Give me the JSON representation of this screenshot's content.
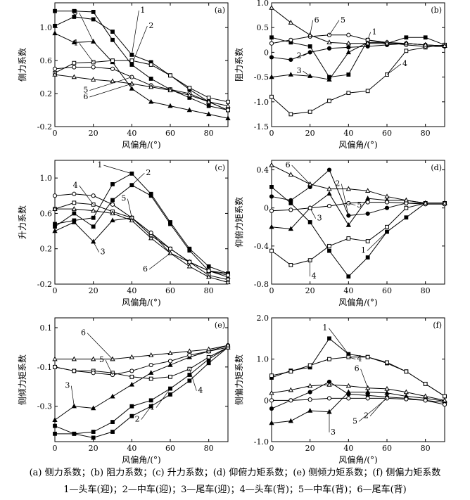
{
  "caption": {
    "line1": "(a) 侧力系数；(b) 阻力系数；(c) 升力系数；(d) 仰俯力矩系数；(e) 侧倾力矩系数；(f) 侧偏力矩系数",
    "line2": "1—头车(迎)；2—中车(迎)；3—尾车(迎)；4—头车(背)；5—中车(背)；6—尾车(背)"
  },
  "chart_data": [
    {
      "panel": "(a)",
      "type": "line",
      "xlabel": "风偏角/(°)",
      "ylabel": "侧力系数",
      "xlim": [
        0,
        90
      ],
      "ylim": [
        -0.2,
        1.3
      ],
      "xticks": [
        0,
        20,
        40,
        60,
        80
      ],
      "yticks": [
        -0.2,
        0.2,
        0.6,
        1.0
      ],
      "ytick_labels": [
        "-0.2",
        "0.2",
        "0.6",
        "1.0"
      ],
      "x": [
        0,
        10,
        20,
        30,
        40,
        50,
        60,
        70,
        80,
        90
      ],
      "series": [
        {
          "name": "1",
          "marker": "filled-square",
          "values": [
            1.02,
            1.13,
            1.1,
            0.95,
            0.67,
            0.58,
            0.42,
            0.25,
            0.1,
            0.0
          ]
        },
        {
          "name": "2",
          "marker": "filled-square",
          "values": [
            1.2,
            1.2,
            1.19,
            0.85,
            0.55,
            0.38,
            0.25,
            0.15,
            0.05,
            0.0
          ]
        },
        {
          "name": "3",
          "marker": "filled-triangle",
          "values": [
            0.93,
            0.82,
            0.83,
            0.58,
            0.26,
            0.1,
            0.05,
            0.0,
            -0.05,
            -0.1
          ]
        },
        {
          "name": "4",
          "marker": "open-square",
          "values": [
            0.45,
            0.57,
            0.58,
            0.6,
            0.6,
            0.55,
            0.42,
            0.27,
            0.15,
            0.1
          ]
        },
        {
          "name": "5",
          "marker": "open-circle",
          "values": [
            0.5,
            0.52,
            0.52,
            0.5,
            0.4,
            0.3,
            0.25,
            0.2,
            0.1,
            0.0
          ]
        },
        {
          "name": "6",
          "marker": "open-triangle",
          "values": [
            0.43,
            0.4,
            0.37,
            0.35,
            0.32,
            0.28,
            0.24,
            0.18,
            0.1,
            0.05
          ]
        }
      ],
      "series_labels": [
        "1",
        "2",
        "3",
        "4",
        "5",
        "6"
      ]
    },
    {
      "panel": "(b)",
      "type": "line",
      "xlabel": "风偏角/(°)",
      "ylabel": "阻力系数",
      "xlim": [
        0,
        90
      ],
      "ylim": [
        -1.5,
        1.0
      ],
      "xticks": [
        0,
        20,
        40,
        60,
        80
      ],
      "yticks": [
        -1.5,
        -1.0,
        -0.5,
        0,
        0.5,
        1.0
      ],
      "ytick_labels": [
        "-1.5",
        "-1.0",
        "-0.5",
        "0",
        "0.5",
        "1.0"
      ],
      "x": [
        0,
        10,
        20,
        30,
        40,
        50,
        60,
        70,
        80,
        90
      ],
      "series": [
        {
          "name": "1",
          "marker": "filled-square",
          "values": [
            0.3,
            0.2,
            0.12,
            -0.5,
            -0.45,
            0.25,
            0.18,
            0.3,
            0.3,
            0.15
          ]
        },
        {
          "name": "2",
          "marker": "filled-circle",
          "values": [
            -0.1,
            -0.15,
            0.0,
            0.08,
            0.1,
            0.12,
            0.15,
            0.18,
            0.15,
            0.13
          ]
        },
        {
          "name": "3",
          "marker": "filled-triangle",
          "values": [
            -0.5,
            -0.45,
            -0.48,
            -0.55,
            0.0,
            0.2,
            0.2,
            0.18,
            0.15,
            0.13
          ]
        },
        {
          "name": "4",
          "marker": "open-square",
          "values": [
            -0.9,
            -1.25,
            -1.2,
            -0.98,
            -0.82,
            -0.78,
            -0.45,
            0.03,
            0.1,
            0.15
          ]
        },
        {
          "name": "5",
          "marker": "open-circle",
          "values": [
            0.18,
            0.25,
            0.32,
            0.35,
            0.35,
            0.25,
            0.2,
            0.15,
            0.12,
            0.12
          ]
        },
        {
          "name": "6",
          "marker": "open-triangle",
          "values": [
            0.9,
            0.6,
            0.35,
            0.2,
            0.18,
            0.18,
            0.18,
            0.18,
            0.15,
            0.13
          ]
        }
      ],
      "series_labels": [
        "1",
        "2",
        "3",
        "4",
        "5",
        "6"
      ]
    },
    {
      "panel": "(c)",
      "type": "line",
      "xlabel": "风偏角/(°)",
      "ylabel": "升力系数",
      "xlim": [
        0,
        90
      ],
      "ylim": [
        -0.2,
        1.2
      ],
      "xticks": [
        0,
        20,
        40,
        60,
        80
      ],
      "yticks": [
        -0.2,
        0.2,
        0.6,
        1.0
      ],
      "ytick_labels": [
        "-0.2",
        "0.2",
        "0.6",
        "1.0"
      ],
      "x": [
        0,
        10,
        20,
        30,
        40,
        50,
        60,
        70,
        80,
        90
      ],
      "series": [
        {
          "name": "1",
          "marker": "filled-square",
          "values": [
            0.48,
            0.52,
            0.55,
            0.93,
            1.05,
            0.82,
            0.5,
            0.2,
            0.0,
            -0.08
          ]
        },
        {
          "name": "2",
          "marker": "filled-square",
          "values": [
            0.45,
            0.6,
            0.45,
            0.75,
            0.92,
            0.8,
            0.48,
            0.18,
            -0.05,
            -0.08
          ]
        },
        {
          "name": "3",
          "marker": "filled-triangle",
          "values": [
            0.4,
            0.5,
            0.28,
            0.52,
            0.55,
            0.38,
            0.15,
            0.05,
            -0.05,
            -0.12
          ]
        },
        {
          "name": "4",
          "marker": "open-square",
          "values": [
            0.65,
            0.72,
            0.7,
            0.62,
            0.55,
            0.35,
            0.2,
            0.05,
            -0.1,
            -0.15
          ]
        },
        {
          "name": "5",
          "marker": "open-circle",
          "values": [
            0.8,
            0.82,
            0.8,
            0.7,
            0.55,
            0.38,
            0.2,
            0.05,
            -0.05,
            -0.1
          ]
        },
        {
          "name": "6",
          "marker": "open-triangle",
          "values": [
            0.65,
            0.65,
            0.63,
            0.6,
            0.52,
            0.32,
            0.15,
            0.0,
            -0.12,
            -0.18
          ]
        }
      ],
      "series_labels": [
        "1",
        "2",
        "3",
        "4",
        "5",
        "6"
      ]
    },
    {
      "panel": "(d)",
      "type": "line",
      "xlabel": "风偏角/(°)",
      "ylabel": "仰俯力矩系数",
      "xlim": [
        0,
        90
      ],
      "ylim": [
        -0.8,
        0.5
      ],
      "xticks": [
        0,
        20,
        40,
        60,
        80
      ],
      "yticks": [
        -0.8,
        -0.4,
        0,
        0.4
      ],
      "ytick_labels": [
        "-0.8",
        "-0.4",
        "0",
        "0.4"
      ],
      "x": [
        0,
        10,
        20,
        30,
        40,
        50,
        60,
        70,
        80,
        90
      ],
      "series": [
        {
          "name": "1",
          "marker": "filled-square",
          "values": [
            0.22,
            0.05,
            -0.15,
            -0.45,
            -0.72,
            -0.52,
            -0.25,
            -0.1,
            0.05,
            0.05
          ]
        },
        {
          "name": "2",
          "marker": "filled-circle",
          "values": [
            0.12,
            0.08,
            0.22,
            0.4,
            -0.08,
            -0.06,
            0.0,
            0.05,
            0.05,
            0.05
          ]
        },
        {
          "name": "3",
          "marker": "filled-triangle",
          "values": [
            -0.2,
            -0.22,
            0.0,
            0.15,
            -0.18,
            0.1,
            0.08,
            0.08,
            0.05,
            0.05
          ]
        },
        {
          "name": "4",
          "marker": "open-square",
          "values": [
            -0.45,
            -0.6,
            -0.55,
            -0.4,
            -0.32,
            -0.35,
            -0.2,
            0.0,
            0.05,
            0.05
          ]
        },
        {
          "name": "5",
          "marker": "open-circle",
          "values": [
            -0.03,
            -0.02,
            0.0,
            0.02,
            0.05,
            0.06,
            0.06,
            0.05,
            0.04,
            0.04
          ]
        },
        {
          "name": "6",
          "marker": "open-triangle",
          "values": [
            0.45,
            0.35,
            0.25,
            0.2,
            0.2,
            0.18,
            0.12,
            0.08,
            0.05,
            0.05
          ]
        }
      ],
      "series_labels": [
        "1",
        "2",
        "3",
        "4",
        "5",
        "6"
      ]
    },
    {
      "panel": "(e)",
      "type": "line",
      "xlabel": "风偏角/(°)",
      "ylabel": "侧倾力矩系数",
      "xlim": [
        0,
        90
      ],
      "ylim": [
        -0.48,
        0.15
      ],
      "xticks": [
        0,
        20,
        40,
        60,
        80
      ],
      "yticks": [
        -0.3,
        -0.1,
        0.1
      ],
      "ytick_labels": [
        "-0.3",
        "-0.1",
        "0.1"
      ],
      "x": [
        0,
        10,
        20,
        30,
        40,
        50,
        60,
        70,
        80,
        90
      ],
      "series": [
        {
          "name": "1",
          "marker": "filled-square",
          "values": [
            -0.4,
            -0.44,
            -0.43,
            -0.38,
            -0.3,
            -0.27,
            -0.21,
            -0.14,
            -0.06,
            0.0
          ]
        },
        {
          "name": "2",
          "marker": "filled-square",
          "values": [
            -0.44,
            -0.44,
            -0.46,
            -0.43,
            -0.35,
            -0.3,
            -0.24,
            -0.17,
            -0.08,
            0.0
          ]
        },
        {
          "name": "3",
          "marker": "filled-triangle",
          "values": [
            -0.37,
            -0.3,
            -0.31,
            -0.25,
            -0.19,
            -0.13,
            -0.09,
            -0.05,
            -0.02,
            0.0
          ]
        },
        {
          "name": "4",
          "marker": "open-square",
          "values": [
            -0.1,
            -0.12,
            -0.12,
            -0.13,
            -0.15,
            -0.16,
            -0.15,
            -0.11,
            -0.05,
            0.0
          ]
        },
        {
          "name": "5",
          "marker": "open-circle",
          "values": [
            -0.1,
            -0.12,
            -0.13,
            -0.14,
            -0.12,
            -0.09,
            -0.07,
            -0.04,
            -0.02,
            0.01
          ]
        },
        {
          "name": "6",
          "marker": "open-triangle",
          "values": [
            -0.06,
            -0.06,
            -0.06,
            -0.06,
            -0.05,
            -0.04,
            -0.03,
            -0.02,
            -0.01,
            0.01
          ]
        }
      ],
      "series_labels": [
        "1",
        "2",
        "3",
        "4",
        "5",
        "6"
      ]
    },
    {
      "panel": "(f)",
      "type": "line",
      "xlabel": "风偏角/(°)",
      "ylabel": "侧偏力矩系数",
      "xlim": [
        0,
        90
      ],
      "ylim": [
        -1.0,
        2.0
      ],
      "xticks": [
        0,
        20,
        40,
        60,
        80
      ],
      "yticks": [
        -1.0,
        0,
        1.0,
        2.0
      ],
      "ytick_labels": [
        "-1.0",
        "0",
        "1.0",
        "2.0"
      ],
      "x": [
        0,
        10,
        20,
        30,
        40,
        50,
        60,
        70,
        80,
        90
      ],
      "series": [
        {
          "name": "1",
          "marker": "filled-square",
          "values": [
            0.55,
            0.72,
            0.8,
            1.5,
            1.12,
            1.05,
            0.9,
            0.7,
            0.4,
            0.1
          ]
        },
        {
          "name": "2",
          "marker": "filled-circle",
          "values": [
            -0.2,
            0.0,
            0.2,
            0.45,
            0.15,
            0.12,
            0.08,
            0.05,
            0.0,
            -0.05
          ]
        },
        {
          "name": "3",
          "marker": "filled-triangle",
          "values": [
            -0.55,
            -0.5,
            -0.25,
            -0.28,
            0.2,
            0.2,
            0.18,
            0.1,
            0.05,
            -0.02
          ]
        },
        {
          "name": "4",
          "marker": "open-square",
          "values": [
            0.6,
            0.7,
            0.85,
            1.0,
            1.05,
            1.05,
            0.92,
            0.7,
            0.4,
            0.1
          ]
        },
        {
          "name": "5",
          "marker": "open-circle",
          "values": [
            0.0,
            0.0,
            0.02,
            0.05,
            0.05,
            0.05,
            0.05,
            0.03,
            0.0,
            -0.1
          ]
        },
        {
          "name": "6",
          "marker": "open-triangle",
          "values": [
            0.18,
            0.25,
            0.35,
            0.38,
            0.35,
            0.3,
            0.28,
            0.2,
            0.1,
            0.0
          ]
        }
      ],
      "series_labels": [
        "1",
        "2",
        "3",
        "4",
        "5",
        "6"
      ]
    }
  ]
}
